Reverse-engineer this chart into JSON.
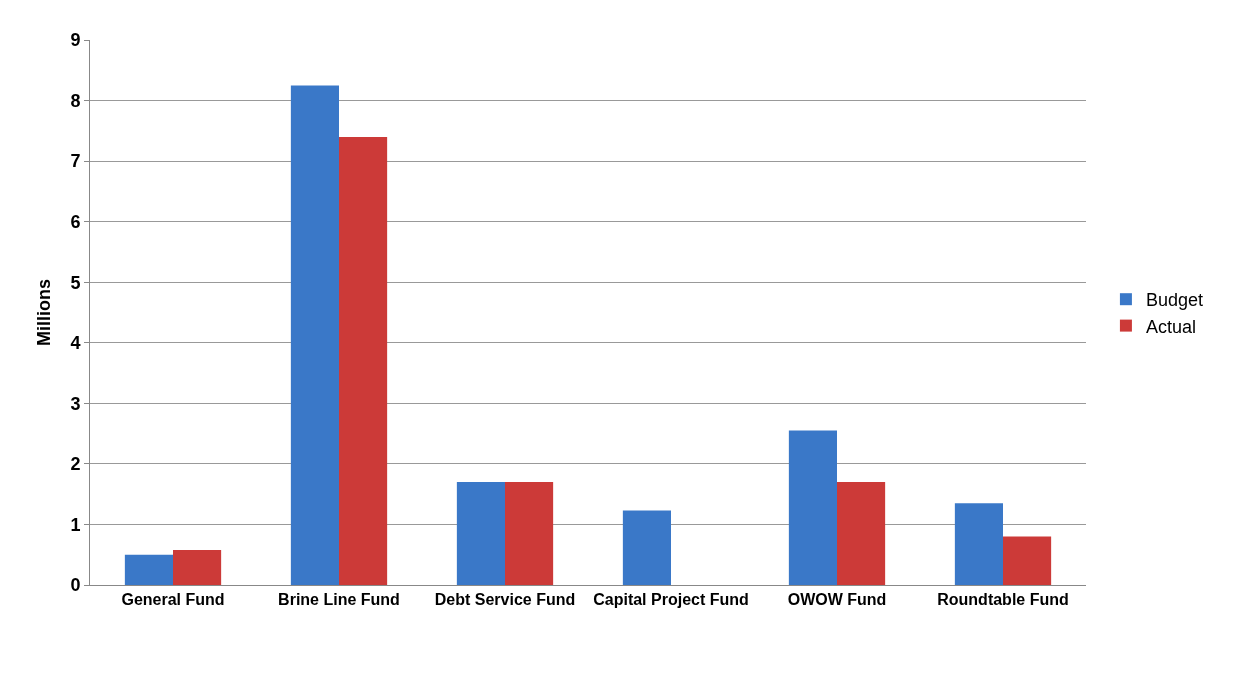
{
  "chart_data": {
    "type": "bar",
    "ylabel": "Millions",
    "categories": [
      "General Fund",
      "Brine Line Fund",
      "Debt Service Fund",
      "Capital Project Fund",
      "OWOW Fund",
      "Roundtable Fund"
    ],
    "series": [
      {
        "name": "Budget",
        "color": "#3a78c8",
        "values": [
          0.5,
          8.25,
          1.7,
          1.23,
          2.55,
          1.35
        ]
      },
      {
        "name": "Actual",
        "color": "#cc3a38",
        "values": [
          0.58,
          7.4,
          1.7,
          0,
          1.7,
          0.8
        ]
      }
    ],
    "ylim": [
      0,
      9
    ],
    "yticks": [
      0,
      1,
      2,
      3,
      4,
      5,
      6,
      7,
      8,
      9
    ],
    "grid": "y",
    "legend": "right"
  }
}
